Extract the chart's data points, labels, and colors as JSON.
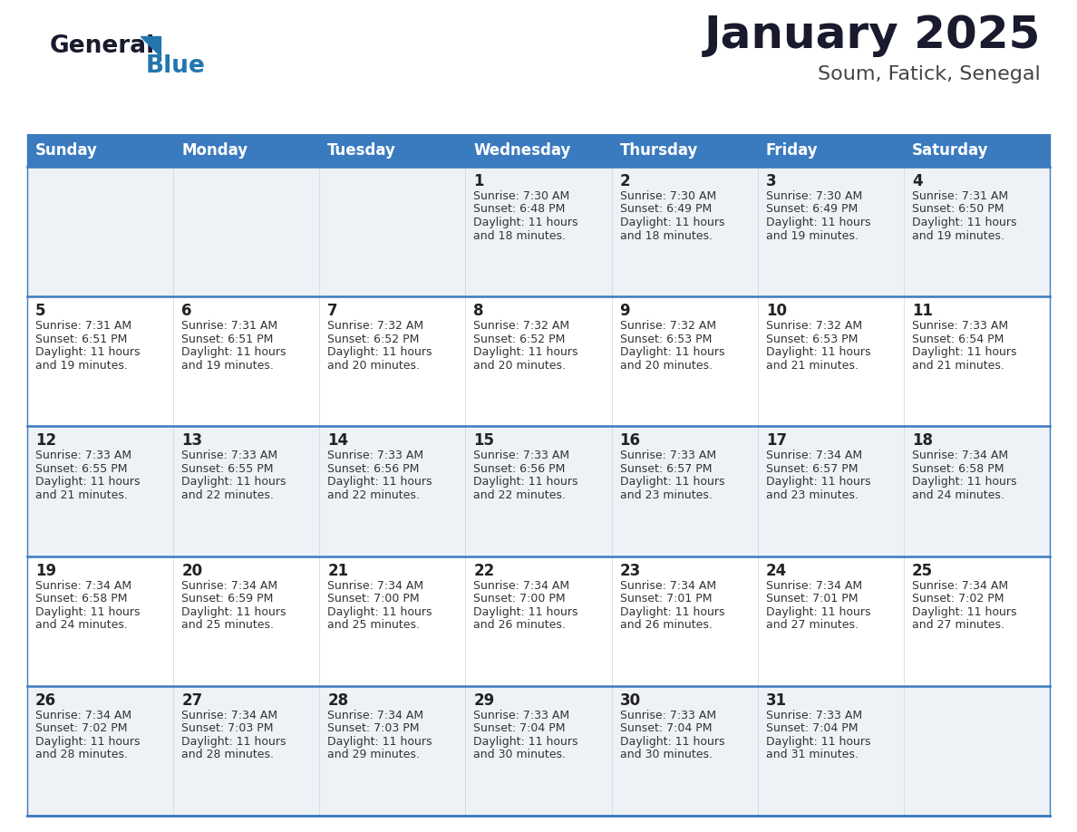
{
  "title": "January 2025",
  "subtitle": "Soum, Fatick, Senegal",
  "days_of_week": [
    "Sunday",
    "Monday",
    "Tuesday",
    "Wednesday",
    "Thursday",
    "Friday",
    "Saturday"
  ],
  "header_bg": "#3a7abf",
  "header_text": "#ffffff",
  "row_bg_odd": "#eef2f7",
  "row_bg_even": "#ffffff",
  "border_color": "#3a7abf",
  "calendar_data": [
    [
      null,
      null,
      null,
      {
        "day": 1,
        "sunrise": "7:30 AM",
        "sunset": "6:48 PM",
        "daylight_a": "11 hours",
        "daylight_b": "and 18 minutes."
      },
      {
        "day": 2,
        "sunrise": "7:30 AM",
        "sunset": "6:49 PM",
        "daylight_a": "11 hours",
        "daylight_b": "and 18 minutes."
      },
      {
        "day": 3,
        "sunrise": "7:30 AM",
        "sunset": "6:49 PM",
        "daylight_a": "11 hours",
        "daylight_b": "and 19 minutes."
      },
      {
        "day": 4,
        "sunrise": "7:31 AM",
        "sunset": "6:50 PM",
        "daylight_a": "11 hours",
        "daylight_b": "and 19 minutes."
      }
    ],
    [
      {
        "day": 5,
        "sunrise": "7:31 AM",
        "sunset": "6:51 PM",
        "daylight_a": "11 hours",
        "daylight_b": "and 19 minutes."
      },
      {
        "day": 6,
        "sunrise": "7:31 AM",
        "sunset": "6:51 PM",
        "daylight_a": "11 hours",
        "daylight_b": "and 19 minutes."
      },
      {
        "day": 7,
        "sunrise": "7:32 AM",
        "sunset": "6:52 PM",
        "daylight_a": "11 hours",
        "daylight_b": "and 20 minutes."
      },
      {
        "day": 8,
        "sunrise": "7:32 AM",
        "sunset": "6:52 PM",
        "daylight_a": "11 hours",
        "daylight_b": "and 20 minutes."
      },
      {
        "day": 9,
        "sunrise": "7:32 AM",
        "sunset": "6:53 PM",
        "daylight_a": "11 hours",
        "daylight_b": "and 20 minutes."
      },
      {
        "day": 10,
        "sunrise": "7:32 AM",
        "sunset": "6:53 PM",
        "daylight_a": "11 hours",
        "daylight_b": "and 21 minutes."
      },
      {
        "day": 11,
        "sunrise": "7:33 AM",
        "sunset": "6:54 PM",
        "daylight_a": "11 hours",
        "daylight_b": "and 21 minutes."
      }
    ],
    [
      {
        "day": 12,
        "sunrise": "7:33 AM",
        "sunset": "6:55 PM",
        "daylight_a": "11 hours",
        "daylight_b": "and 21 minutes."
      },
      {
        "day": 13,
        "sunrise": "7:33 AM",
        "sunset": "6:55 PM",
        "daylight_a": "11 hours",
        "daylight_b": "and 22 minutes."
      },
      {
        "day": 14,
        "sunrise": "7:33 AM",
        "sunset": "6:56 PM",
        "daylight_a": "11 hours",
        "daylight_b": "and 22 minutes."
      },
      {
        "day": 15,
        "sunrise": "7:33 AM",
        "sunset": "6:56 PM",
        "daylight_a": "11 hours",
        "daylight_b": "and 22 minutes."
      },
      {
        "day": 16,
        "sunrise": "7:33 AM",
        "sunset": "6:57 PM",
        "daylight_a": "11 hours",
        "daylight_b": "and 23 minutes."
      },
      {
        "day": 17,
        "sunrise": "7:34 AM",
        "sunset": "6:57 PM",
        "daylight_a": "11 hours",
        "daylight_b": "and 23 minutes."
      },
      {
        "day": 18,
        "sunrise": "7:34 AM",
        "sunset": "6:58 PM",
        "daylight_a": "11 hours",
        "daylight_b": "and 24 minutes."
      }
    ],
    [
      {
        "day": 19,
        "sunrise": "7:34 AM",
        "sunset": "6:58 PM",
        "daylight_a": "11 hours",
        "daylight_b": "and 24 minutes."
      },
      {
        "day": 20,
        "sunrise": "7:34 AM",
        "sunset": "6:59 PM",
        "daylight_a": "11 hours",
        "daylight_b": "and 25 minutes."
      },
      {
        "day": 21,
        "sunrise": "7:34 AM",
        "sunset": "7:00 PM",
        "daylight_a": "11 hours",
        "daylight_b": "and 25 minutes."
      },
      {
        "day": 22,
        "sunrise": "7:34 AM",
        "sunset": "7:00 PM",
        "daylight_a": "11 hours",
        "daylight_b": "and 26 minutes."
      },
      {
        "day": 23,
        "sunrise": "7:34 AM",
        "sunset": "7:01 PM",
        "daylight_a": "11 hours",
        "daylight_b": "and 26 minutes."
      },
      {
        "day": 24,
        "sunrise": "7:34 AM",
        "sunset": "7:01 PM",
        "daylight_a": "11 hours",
        "daylight_b": "and 27 minutes."
      },
      {
        "day": 25,
        "sunrise": "7:34 AM",
        "sunset": "7:02 PM",
        "daylight_a": "11 hours",
        "daylight_b": "and 27 minutes."
      }
    ],
    [
      {
        "day": 26,
        "sunrise": "7:34 AM",
        "sunset": "7:02 PM",
        "daylight_a": "11 hours",
        "daylight_b": "and 28 minutes."
      },
      {
        "day": 27,
        "sunrise": "7:34 AM",
        "sunset": "7:03 PM",
        "daylight_a": "11 hours",
        "daylight_b": "and 28 minutes."
      },
      {
        "day": 28,
        "sunrise": "7:34 AM",
        "sunset": "7:03 PM",
        "daylight_a": "11 hours",
        "daylight_b": "and 29 minutes."
      },
      {
        "day": 29,
        "sunrise": "7:33 AM",
        "sunset": "7:04 PM",
        "daylight_a": "11 hours",
        "daylight_b": "and 30 minutes."
      },
      {
        "day": 30,
        "sunrise": "7:33 AM",
        "sunset": "7:04 PM",
        "daylight_a": "11 hours",
        "daylight_b": "and 30 minutes."
      },
      {
        "day": 31,
        "sunrise": "7:33 AM",
        "sunset": "7:04 PM",
        "daylight_a": "11 hours",
        "daylight_b": "and 31 minutes."
      },
      null
    ]
  ]
}
